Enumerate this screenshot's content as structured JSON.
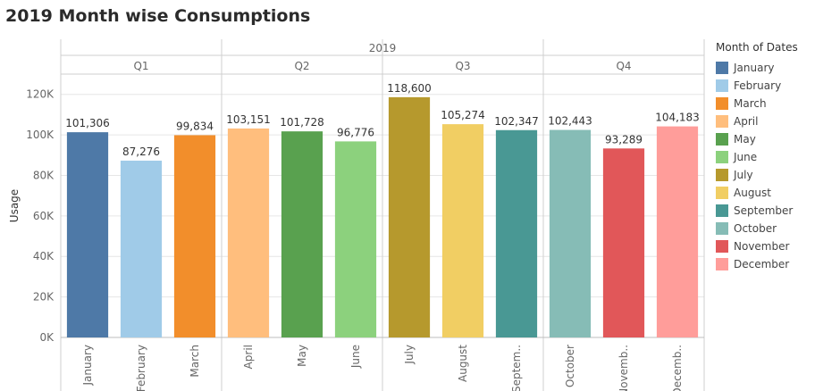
{
  "title": "2019 Month wise Consumptions",
  "chart_data": {
    "type": "bar",
    "year_label": "2019",
    "quarters": [
      "Q1",
      "Q2",
      "Q3",
      "Q4"
    ],
    "categories": [
      "January",
      "February",
      "March",
      "April",
      "May",
      "June",
      "July",
      "August",
      "September",
      "October",
      "November",
      "December"
    ],
    "category_labels": [
      "January",
      "February",
      "March",
      "April",
      "May",
      "June",
      "July",
      "August",
      "Septem..",
      "October",
      "Novemb..",
      "Decemb.."
    ],
    "values": [
      101306,
      87276,
      99834,
      103151,
      101728,
      96776,
      118600,
      105274,
      102347,
      102443,
      93289,
      104183
    ],
    "value_labels": [
      "101,306",
      "87,276",
      "99,834",
      "103,151",
      "101,728",
      "96,776",
      "118,600",
      "105,274",
      "102,347",
      "102,443",
      "93,289",
      "104,183"
    ],
    "colors": [
      "#4e79a7",
      "#a0cbe8",
      "#f28e2b",
      "#ffbe7d",
      "#59a14f",
      "#8cd17d",
      "#b6992d",
      "#f1ce63",
      "#499894",
      "#86bcb6",
      "#e15759",
      "#ff9d9a"
    ],
    "ylabel": "Usage",
    "ylim": [
      0,
      130000
    ],
    "yticks": [
      0,
      20000,
      40000,
      60000,
      80000,
      100000,
      120000
    ],
    "ytick_labels": [
      "0K",
      "20K",
      "40K",
      "60K",
      "80K",
      "100K",
      "120K"
    ],
    "grid": true,
    "legend": {
      "title": "Month of Dates",
      "position": "right",
      "items": [
        "January",
        "February",
        "March",
        "April",
        "May",
        "June",
        "July",
        "August",
        "September",
        "October",
        "November",
        "December"
      ]
    }
  }
}
